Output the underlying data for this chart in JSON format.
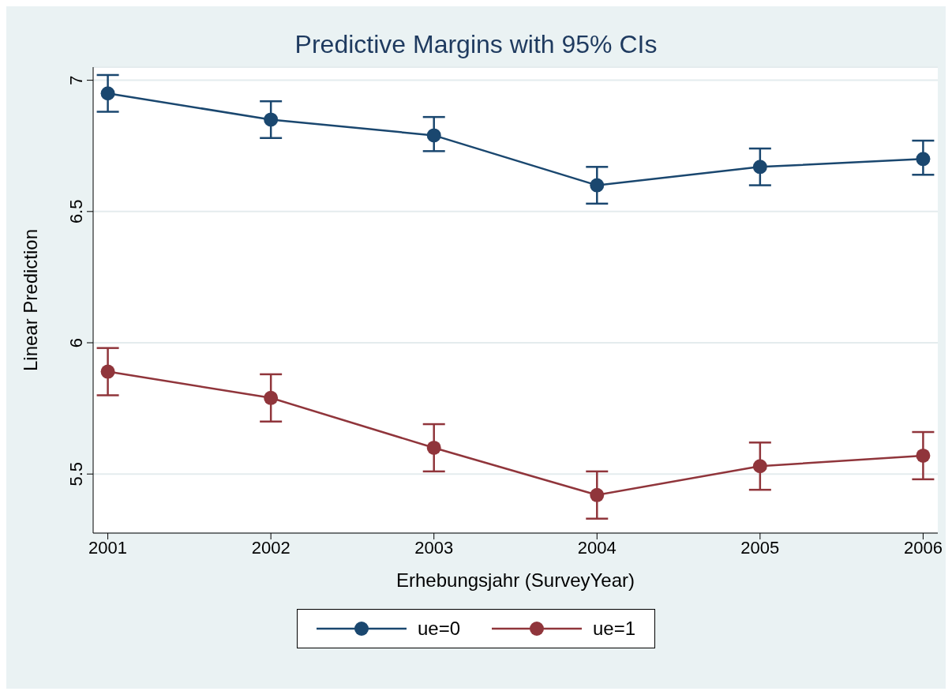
{
  "chart_data": {
    "type": "line",
    "title": "Predictive Margins with 95% CIs",
    "xlabel": "Erhebungsjahr (SurveyYear)",
    "ylabel": "Linear Prediction",
    "x": [
      2001,
      2002,
      2003,
      2004,
      2005,
      2006
    ],
    "series": [
      {
        "name": "ue=0",
        "color": "#1a476f",
        "values": [
          6.95,
          6.85,
          6.79,
          6.6,
          6.67,
          6.7
        ],
        "errors": [
          [
            6.88,
            7.02
          ],
          [
            6.78,
            6.92
          ],
          [
            6.73,
            6.86
          ],
          [
            6.53,
            6.67
          ],
          [
            6.6,
            6.74
          ],
          [
            6.64,
            6.77
          ]
        ]
      },
      {
        "name": "ue=1",
        "color": "#90353b",
        "values": [
          5.89,
          5.79,
          5.6,
          5.42,
          5.53,
          5.57
        ],
        "errors": [
          [
            5.8,
            5.98
          ],
          [
            5.7,
            5.88
          ],
          [
            5.51,
            5.69
          ],
          [
            5.33,
            5.51
          ],
          [
            5.44,
            5.62
          ],
          [
            5.48,
            5.66
          ]
        ]
      }
    ],
    "xlim": [
      2000.91,
      2006.09
    ],
    "xticks": [
      2001,
      2002,
      2003,
      2004,
      2005,
      2006
    ],
    "ylim": [
      5.275,
      7.05
    ],
    "yticks": [
      5.5,
      6,
      6.5,
      7
    ],
    "grid": "y",
    "legend": "bottom",
    "marker": "circle",
    "line_style": "solid"
  }
}
